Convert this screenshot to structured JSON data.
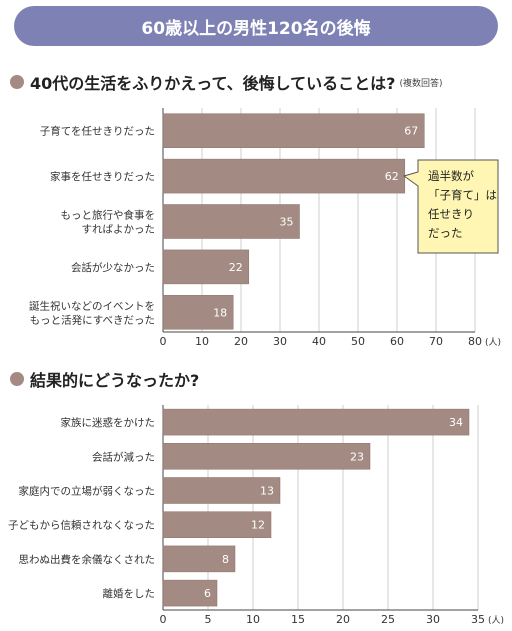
{
  "banner": "60歳以上の男性120名の後悔",
  "section1": {
    "title": "40代の生活をふりかえって、後悔していることは?",
    "note": "(複数回答)"
  },
  "section2": {
    "title": "結果的にどうなったか?"
  },
  "callout": {
    "lines": [
      "過半数が",
      "「子育て」は",
      "任せきり",
      "だった"
    ]
  },
  "colors": {
    "bar": "#a38a82",
    "bar_edge": "#8a6f67",
    "banner": "#7e81b4",
    "callout_bg": "#fff6b3",
    "grid": "#cfcfcf"
  },
  "chart_data": [
    {
      "type": "bar",
      "orientation": "horizontal",
      "categories": [
        [
          "子育てを任せきりだった"
        ],
        [
          "家事を任せきりだった"
        ],
        [
          "もっと旅行や食事を",
          "すればよかった"
        ],
        [
          "会話が少なかった"
        ],
        [
          "誕生祝いなどのイベントを",
          "もっと活発にすべきだった"
        ]
      ],
      "values": [
        67,
        62,
        35,
        22,
        18
      ],
      "xlim": [
        0,
        80
      ],
      "ticks": [
        0,
        10,
        20,
        30,
        40,
        50,
        60,
        70,
        80
      ],
      "unit": "(人)",
      "grid": true
    },
    {
      "type": "bar",
      "orientation": "horizontal",
      "categories": [
        [
          "家族に迷惑をかけた"
        ],
        [
          "会話が減った"
        ],
        [
          "家庭内での立場が弱くなった"
        ],
        [
          "子どもから信頼されなくなった"
        ],
        [
          "思わぬ出費を余儀なくされた"
        ],
        [
          "離婚をした"
        ]
      ],
      "values": [
        34,
        23,
        13,
        12,
        8,
        6
      ],
      "xlim": [
        0,
        35
      ],
      "ticks": [
        0,
        5,
        10,
        15,
        20,
        25,
        30,
        35
      ],
      "unit": "(人)",
      "grid": true
    }
  ]
}
